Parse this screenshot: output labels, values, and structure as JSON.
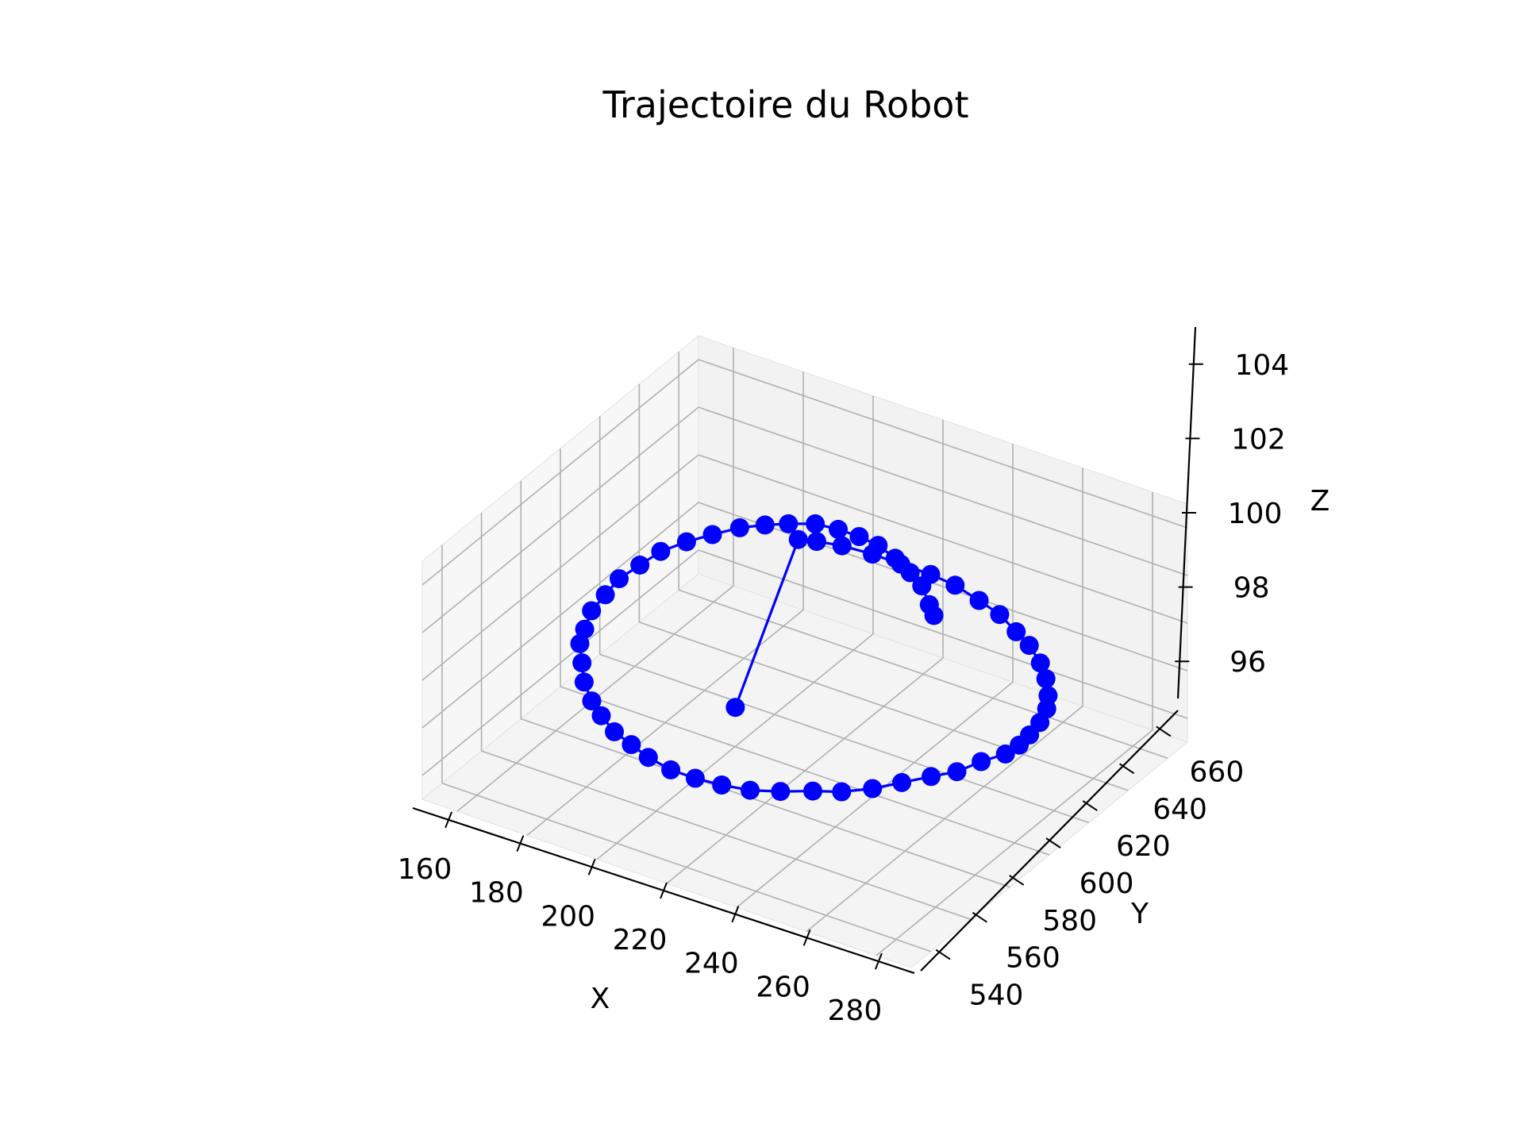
{
  "chart_data": {
    "type": "line",
    "projection": "3d",
    "title": "Trajectoire du Robot",
    "xlabel": "X",
    "ylabel": "Y",
    "zlabel": "Z",
    "xlim": [
      150,
      290
    ],
    "ylim": [
      530,
      670
    ],
    "zlim": [
      95,
      105
    ],
    "x_ticks": [
      "160",
      "180",
      "200",
      "220",
      "240",
      "260",
      "280"
    ],
    "y_ticks": [
      "540",
      "560",
      "580",
      "600",
      "620",
      "640",
      "660"
    ],
    "z_ticks": [
      "96",
      "98",
      "100",
      "102",
      "104"
    ],
    "grid": true,
    "colors": {
      "series": "#0000ff",
      "pane": "#f2f2f2",
      "grid": "#b0b0b0"
    },
    "series": [
      {
        "marker": "circle",
        "points": [
          [
            240,
            630,
            100.5
          ],
          [
            237,
            633,
            100.6
          ],
          [
            232,
            638,
            100.8
          ],
          [
            227,
            641,
            100.9
          ],
          [
            221,
            644,
            101.0
          ],
          [
            215,
            646,
            101.1
          ],
          [
            209,
            647,
            101.1
          ],
          [
            203,
            647,
            101.1
          ],
          [
            197,
            646,
            101.1
          ],
          [
            191,
            643,
            101.0
          ],
          [
            186,
            640,
            100.9
          ],
          [
            181,
            636,
            100.8
          ],
          [
            176,
            631,
            100.6
          ],
          [
            172,
            625,
            100.5
          ],
          [
            168,
            619,
            100.3
          ],
          [
            166,
            612,
            100.1
          ],
          [
            164,
            605,
            99.9
          ],
          [
            164,
            598,
            99.7
          ],
          [
            164,
            591,
            99.5
          ],
          [
            166,
            584,
            99.3
          ],
          [
            168,
            578,
            99.2
          ],
          [
            172,
            572,
            99.0
          ],
          [
            176,
            566,
            98.8
          ],
          [
            181,
            561,
            98.6
          ],
          [
            186,
            557,
            98.5
          ],
          [
            192,
            553,
            98.4
          ],
          [
            198,
            551,
            98.3
          ],
          [
            204,
            549,
            98.2
          ],
          [
            211,
            548,
            98.1
          ],
          [
            218,
            548,
            98.1
          ],
          [
            225,
            549,
            98.1
          ],
          [
            232,
            551,
            98.1
          ],
          [
            239,
            554,
            98.2
          ],
          [
            246,
            558,
            98.3
          ],
          [
            252,
            562,
            98.3
          ],
          [
            258,
            567,
            98.4
          ],
          [
            263,
            573,
            98.5
          ],
          [
            268,
            579,
            98.6
          ],
          [
            272,
            585,
            98.6
          ],
          [
            275,
            592,
            98.7
          ],
          [
            278,
            599,
            98.7
          ],
          [
            278,
            606,
            98.6
          ],
          [
            277,
            613,
            98.5
          ],
          [
            276,
            620,
            98.5
          ],
          [
            274,
            627,
            98.5
          ],
          [
            271,
            633,
            98.5
          ],
          [
            267,
            639,
            98.6
          ],
          [
            262,
            645,
            98.6
          ],
          [
            256,
            650,
            98.7
          ],
          [
            250,
            654,
            98.7
          ],
          [
            243,
            658,
            98.8
          ],
          [
            236,
            660,
            98.9
          ],
          [
            228,
            662,
            99.0
          ],
          [
            221,
            662,
            99.1
          ],
          [
            213,
            661,
            99.2
          ],
          [
            206,
            659,
            99.4
          ],
          [
            199,
            656,
            99.6
          ],
          [
            194,
            652,
            99.8
          ],
          [
            191,
            648,
            100.0
          ],
          [
            208,
            586,
            98.0
          ]
        ]
      }
    ]
  }
}
